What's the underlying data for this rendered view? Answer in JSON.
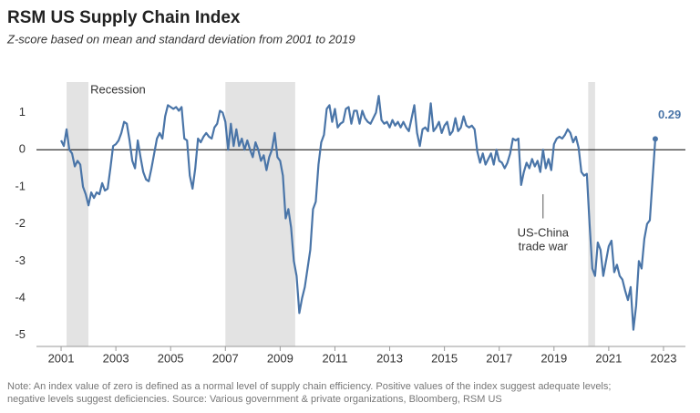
{
  "chart_data": {
    "type": "line",
    "title": "RSM US Supply Chain Index",
    "subtitle": "Z-score based on mean and standard deviation from 2001 to 2019",
    "note": [
      "Note: An index value of zero is defined as a normal level of supply chain efficiency. Positive values of the index suggest adequate levels;",
      "negative levels suggest deficiencies. Source: Various government & private organizations, Bloomberg, RSM US"
    ],
    "x": [
      2001,
      2001.1,
      2001.2,
      2001.3,
      2001.4,
      2001.5,
      2001.6,
      2001.7,
      2001.8,
      2001.9,
      2002,
      2002.1,
      2002.2,
      2002.3,
      2002.4,
      2002.5,
      2002.6,
      2002.7,
      2002.8,
      2002.9,
      2003,
      2003.1,
      2003.2,
      2003.3,
      2003.4,
      2003.5,
      2003.6,
      2003.7,
      2003.8,
      2003.9,
      2004,
      2004.1,
      2004.2,
      2004.3,
      2004.4,
      2004.5,
      2004.6,
      2004.7,
      2004.8,
      2004.9,
      2005,
      2005.1,
      2005.2,
      2005.3,
      2005.4,
      2005.5,
      2005.6,
      2005.7,
      2005.8,
      2005.9,
      2006,
      2006.1,
      2006.2,
      2006.3,
      2006.4,
      2006.5,
      2006.6,
      2006.7,
      2006.8,
      2006.9,
      2007,
      2007.1,
      2007.2,
      2007.3,
      2007.4,
      2007.5,
      2007.6,
      2007.7,
      2007.8,
      2007.9,
      2008,
      2008.1,
      2008.2,
      2008.3,
      2008.4,
      2008.5,
      2008.6,
      2008.7,
      2008.8,
      2008.9,
      2009,
      2009.1,
      2009.2,
      2009.3,
      2009.4,
      2009.5,
      2009.6,
      2009.7,
      2009.8,
      2009.9,
      2010,
      2010.1,
      2010.2,
      2010.3,
      2010.4,
      2010.5,
      2010.6,
      2010.7,
      2010.8,
      2010.9,
      2011,
      2011.1,
      2011.2,
      2011.3,
      2011.4,
      2011.5,
      2011.6,
      2011.7,
      2011.8,
      2011.9,
      2012,
      2012.1,
      2012.2,
      2012.3,
      2012.4,
      2012.5,
      2012.6,
      2012.7,
      2012.8,
      2012.9,
      2013,
      2013.1,
      2013.2,
      2013.3,
      2013.4,
      2013.5,
      2013.6,
      2013.7,
      2013.8,
      2013.9,
      2014,
      2014.1,
      2014.2,
      2014.3,
      2014.4,
      2014.5,
      2014.6,
      2014.7,
      2014.8,
      2014.9,
      2015,
      2015.1,
      2015.2,
      2015.3,
      2015.4,
      2015.5,
      2015.6,
      2015.7,
      2015.8,
      2015.9,
      2016,
      2016.1,
      2016.2,
      2016.3,
      2016.4,
      2016.5,
      2016.6,
      2016.7,
      2016.8,
      2016.9,
      2017,
      2017.1,
      2017.2,
      2017.3,
      2017.4,
      2017.5,
      2017.6,
      2017.7,
      2017.8,
      2017.9,
      2018,
      2018.1,
      2018.2,
      2018.3,
      2018.4,
      2018.5,
      2018.6,
      2018.7,
      2018.8,
      2018.9,
      2019,
      2019.1,
      2019.2,
      2019.3,
      2019.4,
      2019.5,
      2019.6,
      2019.7,
      2019.8,
      2019.9,
      2020,
      2020.1,
      2020.2,
      2020.3,
      2020.4,
      2020.5,
      2020.6,
      2020.7,
      2020.8,
      2020.9,
      2021,
      2021.1,
      2021.2,
      2021.3,
      2021.4,
      2021.5,
      2021.6,
      2021.7,
      2021.8,
      2021.9,
      2022,
      2022.1,
      2022.2,
      2022.3,
      2022.4,
      2022.5,
      2022.6,
      2022.7
    ],
    "series": [
      {
        "color": "#4a75a8",
        "values": [
          0.25,
          0.1,
          0.55,
          0.0,
          -0.1,
          -0.45,
          -0.3,
          -0.4,
          -1.0,
          -1.2,
          -1.5,
          -1.15,
          -1.3,
          -1.15,
          -1.2,
          -0.9,
          -1.1,
          -1.05,
          -0.5,
          0.1,
          0.15,
          0.25,
          0.45,
          0.75,
          0.7,
          0.25,
          -0.3,
          -0.5,
          0.25,
          -0.2,
          -0.6,
          -0.8,
          -0.85,
          -0.5,
          -0.1,
          0.3,
          0.45,
          0.3,
          0.9,
          1.2,
          1.15,
          1.1,
          1.15,
          1.05,
          1.15,
          0.3,
          0.25,
          -0.7,
          -1.05,
          -0.5,
          0.3,
          0.2,
          0.35,
          0.45,
          0.35,
          0.3,
          0.6,
          0.7,
          1.05,
          1.0,
          0.75,
          0.0,
          0.7,
          0.1,
          0.55,
          0.1,
          0.3,
          0.0,
          0.25,
          0.0,
          -0.2,
          0.2,
          0.0,
          -0.3,
          -0.15,
          -0.55,
          -0.2,
          0.0,
          0.45,
          -0.2,
          -0.3,
          -0.7,
          -1.85,
          -1.6,
          -2.1,
          -3.0,
          -3.4,
          -4.4,
          -4.0,
          -3.7,
          -3.2,
          -2.7,
          -1.6,
          -1.4,
          -0.4,
          0.2,
          0.4,
          1.1,
          1.2,
          0.75,
          1.1,
          0.6,
          0.7,
          0.75,
          1.1,
          1.15,
          0.7,
          1.05,
          1.05,
          0.7,
          1.05,
          0.85,
          0.75,
          0.7,
          0.85,
          1.0,
          1.45,
          0.8,
          0.7,
          0.75,
          0.6,
          0.8,
          0.65,
          0.75,
          0.6,
          0.75,
          0.6,
          0.5,
          0.85,
          1.2,
          0.45,
          0.1,
          0.55,
          0.6,
          0.5,
          1.25,
          0.5,
          0.6,
          0.75,
          0.45,
          0.65,
          0.75,
          0.4,
          0.5,
          0.85,
          0.5,
          0.6,
          0.9,
          0.65,
          0.6,
          0.65,
          0.55,
          -0.05,
          -0.35,
          -0.1,
          -0.4,
          -0.25,
          -0.1,
          -0.4,
          0.0,
          -0.3,
          -0.35,
          -0.5,
          -0.35,
          -0.1,
          0.3,
          0.25,
          0.3,
          -0.95,
          -0.6,
          -0.35,
          -0.5,
          -0.25,
          -0.45,
          -0.3,
          -0.6,
          0.0,
          -0.5,
          -0.25,
          -0.55,
          0.15,
          0.3,
          0.35,
          0.3,
          0.4,
          0.55,
          0.45,
          0.2,
          0.35,
          0.05,
          -0.6,
          -0.7,
          -0.65,
          -2.0,
          -3.2,
          -3.4,
          -2.5,
          -2.7,
          -3.4,
          -3.0,
          -2.6,
          -2.45,
          -3.3,
          -3.1,
          -3.4,
          -3.5,
          -3.8,
          -4.05,
          -3.7,
          -4.85,
          -4.2,
          -3.0,
          -3.2,
          -2.4,
          -2.0,
          -1.9,
          -0.8,
          0.29
        ]
      }
    ],
    "xlim": [
      2000.1,
      2023.8
    ],
    "xticks": [
      2001,
      2003,
      2005,
      2007,
      2009,
      2011,
      2013,
      2015,
      2017,
      2019,
      2021,
      2023
    ],
    "ylim": [
      -5.3,
      1.7
    ],
    "yticks": [
      -5,
      -4,
      -3,
      -2,
      -1,
      0,
      1
    ],
    "grid": false,
    "recessions": [
      [
        2001.2,
        2002.0
      ],
      [
        2007.0,
        2009.55
      ],
      [
        2020.25,
        2020.5
      ]
    ],
    "recession_color": "#e3e3e3",
    "recession_label": "Recession",
    "annotation": {
      "text": [
        "US-China",
        "trade war"
      ],
      "x": 2018.6
    }
  }
}
